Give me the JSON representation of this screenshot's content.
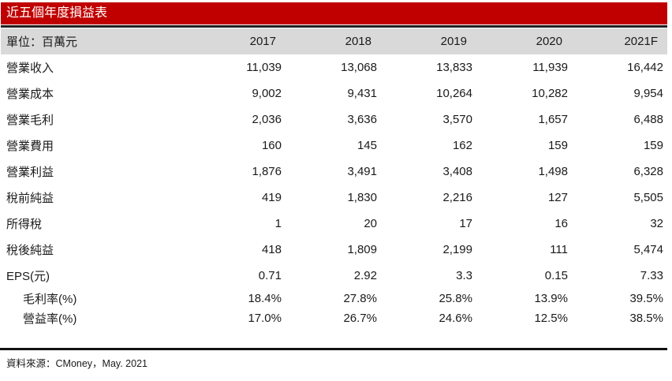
{
  "title": "近五個年度損益表",
  "table": {
    "unit_label": "單位：百萬元",
    "years": [
      "2017",
      "2018",
      "2019",
      "2020",
      "2021F"
    ],
    "rows": [
      {
        "label": "營業收入",
        "values": [
          "11,039",
          "13,068",
          "13,833",
          "11,939",
          "16,442"
        ]
      },
      {
        "label": "營業成本",
        "values": [
          "9,002",
          "9,431",
          "10,264",
          "10,282",
          "9,954"
        ]
      },
      {
        "label": "營業毛利",
        "values": [
          "2,036",
          "3,636",
          "3,570",
          "1,657",
          "6,488"
        ]
      },
      {
        "label": "營業費用",
        "values": [
          "160",
          "145",
          "162",
          "159",
          "159"
        ]
      },
      {
        "label": "營業利益",
        "values": [
          "1,876",
          "3,491",
          "3,408",
          "1,498",
          "6,328"
        ]
      },
      {
        "label": "稅前純益",
        "values": [
          "419",
          "1,830",
          "2,216",
          "127",
          "5,505"
        ]
      },
      {
        "label": "所得稅",
        "values": [
          "1",
          "20",
          "17",
          "16",
          "32"
        ]
      },
      {
        "label": "稅後純益",
        "values": [
          "418",
          "1,809",
          "2,199",
          "111",
          "5,474"
        ]
      },
      {
        "label": "EPS(元)",
        "values": [
          "0.71",
          "2.92",
          "3.3",
          "0.15",
          "7.33"
        ]
      }
    ],
    "ratio_rows": [
      {
        "label": "毛利率(%)",
        "values": [
          "18.4%",
          "27.8%",
          "25.8%",
          "13.9%",
          "39.5%"
        ]
      },
      {
        "label": "營益率(%)",
        "values": [
          "17.0%",
          "26.7%",
          "24.6%",
          "12.5%",
          "38.5%"
        ]
      }
    ]
  },
  "footer": {
    "source": "資料來源：CMoney，May. 2021"
  },
  "colors": {
    "accent_red": "#c00000",
    "header_gray": "#d9d9d9",
    "divider_dark": "#1f1f1f"
  }
}
